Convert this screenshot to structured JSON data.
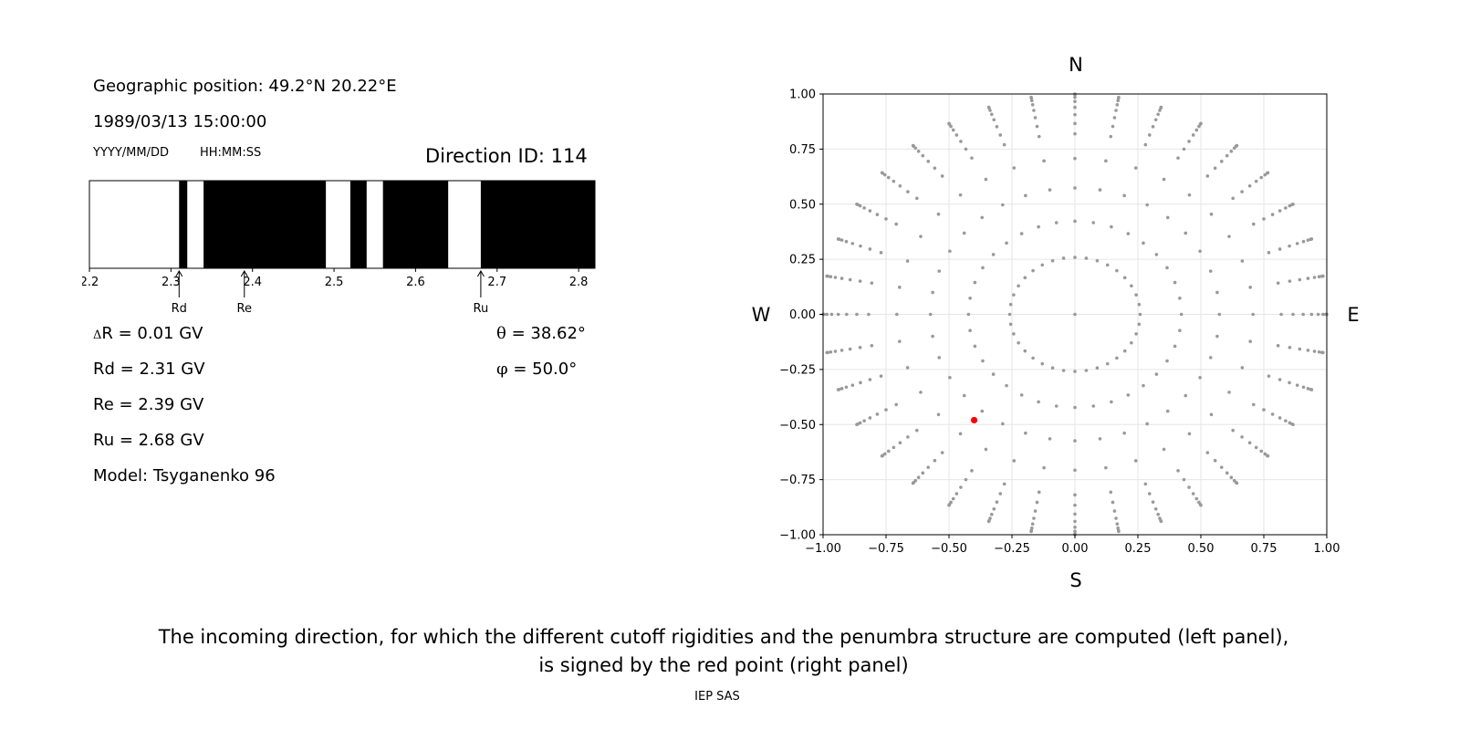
{
  "left": {
    "geo_label": "Geographic position: 49.2°N 20.22°E",
    "datetime": "1989/03/13 15:00:00",
    "date_fmt": "YYYY/MM/DD",
    "time_fmt": "HH:MM:SS",
    "direction_id": "Direction ID: 114",
    "delta_symbol": "Δ",
    "delta_text": "R = 0.01 GV",
    "rd_text": "Rd = 2.31 GV",
    "re_text": "Re = 2.39 GV",
    "ru_text": "Ru = 2.68 GV",
    "model_text": "Model: Tsyganenko 96",
    "theta_symbol": "θ",
    "theta_text": " = 38.62°",
    "phi_symbol": "φ",
    "phi_text": " = 50.0°"
  },
  "caption": {
    "line1": "The incoming direction, for which the different cutoff rigidities and the penumbra structure are computed (left panel),",
    "line2": "is signed by the red point (right panel)",
    "credit": "IEP SAS"
  },
  "chart_data": [
    {
      "type": "penumbra_bar",
      "xlim": [
        2.2,
        2.82
      ],
      "xticks": [
        2.2,
        2.3,
        2.4,
        2.5,
        2.6,
        2.7,
        2.8
      ],
      "xtick_labels": [
        "2.2",
        "2.3",
        "2.4",
        "2.5",
        "2.6",
        "2.7",
        "2.8"
      ],
      "forbidden_segments": [
        [
          2.31,
          2.32
        ],
        [
          2.34,
          2.49
        ],
        [
          2.52,
          2.54
        ],
        [
          2.56,
          2.64
        ],
        [
          2.68,
          2.82
        ]
      ],
      "markers": [
        {
          "label": "Rd",
          "value": 2.31
        },
        {
          "label": "Re",
          "value": 2.39
        },
        {
          "label": "Ru",
          "value": 2.68
        }
      ],
      "colors": {
        "forbidden": "#000000",
        "allowed": "#ffffff"
      }
    },
    {
      "type": "scatter",
      "xlim": [
        -1.0,
        1.0
      ],
      "ylim": [
        -1.0,
        1.0
      ],
      "ticks": [
        -1.0,
        -0.75,
        -0.5,
        -0.25,
        0.0,
        0.25,
        0.5,
        0.75,
        1.0
      ],
      "tick_labels_x": [
        "−1.00",
        "−0.75",
        "−0.50",
        "−0.25",
        "0.00",
        "0.25",
        "0.50",
        "0.75",
        "1.00"
      ],
      "tick_labels_y": [
        "1.00",
        "0.75",
        "0.50",
        "0.25",
        "0.00",
        "−0.25",
        "−0.50",
        "−0.75",
        "−1.00"
      ],
      "compass": {
        "north": "N",
        "south": "S",
        "west": "W",
        "east": "E"
      },
      "grid": true,
      "directions": {
        "azimuth_step_deg": 10,
        "zenith_angles_deg": [
          0,
          15,
          25,
          35,
          45,
          55,
          60,
          65,
          70,
          75,
          80,
          85,
          90
        ]
      },
      "selected_point": {
        "x": -0.4,
        "y": -0.48,
        "theta": 38.62,
        "phi": 50.0
      },
      "colors": {
        "points": "#999999",
        "selected": "#ff0000",
        "grid": "#e6e6e6"
      }
    }
  ]
}
